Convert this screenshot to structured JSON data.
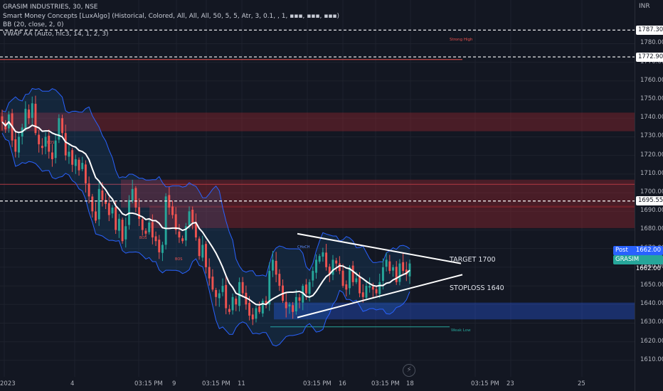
{
  "legend": {
    "title": "GRASIM INDUSTRIES, 30, NSE",
    "indicator1": "Smart Money Concepts [LuxAlgo] (Historical, Colored, All, All, All, 50, 5, 5, Atr, 3, 0.1, , 1, ▪▪▪, ▪▪▪, ▪▪▪)",
    "indicator2": "BB (20, close, 2, 0)",
    "indicator3": "VWAP AA (Auto, hlc3, 14, 1, 2, 3)"
  },
  "currency": "INR",
  "annotations": {
    "target": "TARGET 1700",
    "stoploss": "STOPLOSS 1640",
    "strong_high": "Strong High",
    "weak_low": "Weak Low",
    "choch": "CHoCH",
    "bos": "BOS"
  },
  "price_badges": [
    {
      "name": "Post",
      "value": "1662.00",
      "color": "#2962ff"
    },
    {
      "name": "GRASIM",
      "value": "1662.00",
      "color": "#26a69a"
    }
  ],
  "price_lines": [
    {
      "label": "1787.30",
      "value": 1787.3
    },
    {
      "label": "1772.90",
      "value": 1772.9
    },
    {
      "label": "1695.55",
      "value": 1695.55
    }
  ],
  "chart_data": {
    "type": "candlestick",
    "title": "GRASIM INDUSTRIES, 30, NSE",
    "ylim": [
      1605,
      1792
    ],
    "y_ticks": [
      1610,
      1620,
      1630,
      1640,
      1650,
      1660,
      1670,
      1680,
      1690,
      1700,
      1710,
      1720,
      1730,
      1740,
      1750,
      1760,
      1770,
      1780
    ],
    "x_ticks": [
      "2023",
      "4",
      "03:15 PM",
      "9",
      "03:15 PM",
      "11",
      "03:15 PM",
      "16",
      "03:15 PM",
      "18",
      "03:15 PM",
      "23",
      "25"
    ],
    "zones": [
      {
        "type": "supply",
        "from": 1733,
        "to": 1743
      },
      {
        "type": "supply",
        "from": 1692,
        "to": 1707
      },
      {
        "type": "supply",
        "from": 1681,
        "to": 1693
      },
      {
        "type": "demand",
        "from": 1632,
        "to": 1641
      }
    ],
    "triangle": {
      "upper": [
        1678,
        1662
      ],
      "lower": [
        1633,
        1656
      ]
    },
    "closes": [
      1738,
      1734,
      1742,
      1728,
      1722,
      1730,
      1735,
      1745,
      1740,
      1748,
      1732,
      1726,
      1724,
      1730,
      1722,
      1718,
      1728,
      1740,
      1732,
      1720,
      1722,
      1715,
      1718,
      1712,
      1716,
      1705,
      1698,
      1690,
      1685,
      1702,
      1696,
      1694,
      1688,
      1692,
      1680,
      1686,
      1674,
      1682,
      1696,
      1702,
      1692,
      1686,
      1680,
      1678,
      1684,
      1676,
      1674,
      1668,
      1672,
      1698,
      1692,
      1688,
      1680,
      1676,
      1674,
      1682,
      1690,
      1684,
      1676,
      1666,
      1672,
      1660,
      1654,
      1648,
      1644,
      1646,
      1650,
      1638,
      1636,
      1644,
      1640,
      1652,
      1646,
      1640,
      1634,
      1632,
      1638,
      1636,
      1642,
      1640,
      1658,
      1664,
      1656,
      1650,
      1642,
      1638,
      1640,
      1636,
      1644,
      1642,
      1650,
      1646,
      1652,
      1658,
      1664,
      1666,
      1668,
      1660,
      1656,
      1664,
      1662,
      1658,
      1650,
      1648,
      1660,
      1652,
      1654,
      1646,
      1644,
      1650,
      1650,
      1648,
      1646,
      1652,
      1660,
      1664,
      1658,
      1660,
      1652,
      1662,
      1658,
      1656,
      1662
    ]
  }
}
